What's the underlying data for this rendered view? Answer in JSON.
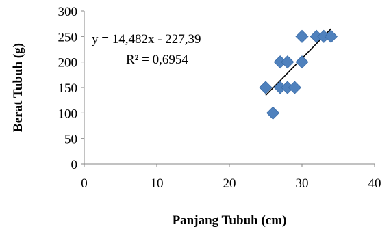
{
  "chart_data": {
    "type": "scatter",
    "xlabel": "Panjang Tubuh (cm)",
    "ylabel": "Berat Tubuh (g)",
    "xlim": [
      0,
      40
    ],
    "ylim": [
      0,
      300
    ],
    "x_ticks": [
      "0",
      "10",
      "20",
      "30",
      "40"
    ],
    "y_ticks": [
      "0",
      "50",
      "100",
      "150",
      "200",
      "250",
      "300"
    ],
    "grid": false,
    "points": [
      {
        "x": 25,
        "y": 150
      },
      {
        "x": 26,
        "y": 100
      },
      {
        "x": 27,
        "y": 150
      },
      {
        "x": 27,
        "y": 200
      },
      {
        "x": 28,
        "y": 150
      },
      {
        "x": 28,
        "y": 200
      },
      {
        "x": 29,
        "y": 150
      },
      {
        "x": 30,
        "y": 200
      },
      {
        "x": 30,
        "y": 250
      },
      {
        "x": 32,
        "y": 250
      },
      {
        "x": 33,
        "y": 250
      },
      {
        "x": 34,
        "y": 250
      }
    ],
    "trendline": {
      "type": "linear",
      "slope": 14.482,
      "intercept": -227.39,
      "x_range": [
        25,
        34
      ],
      "equation_label": "y = 14,482x - 227,39",
      "r2_label": "R² = 0,6954"
    },
    "marker_color": "#4F81BD",
    "marker_border": "#3A6CA8",
    "trendline_color": "#000000"
  }
}
